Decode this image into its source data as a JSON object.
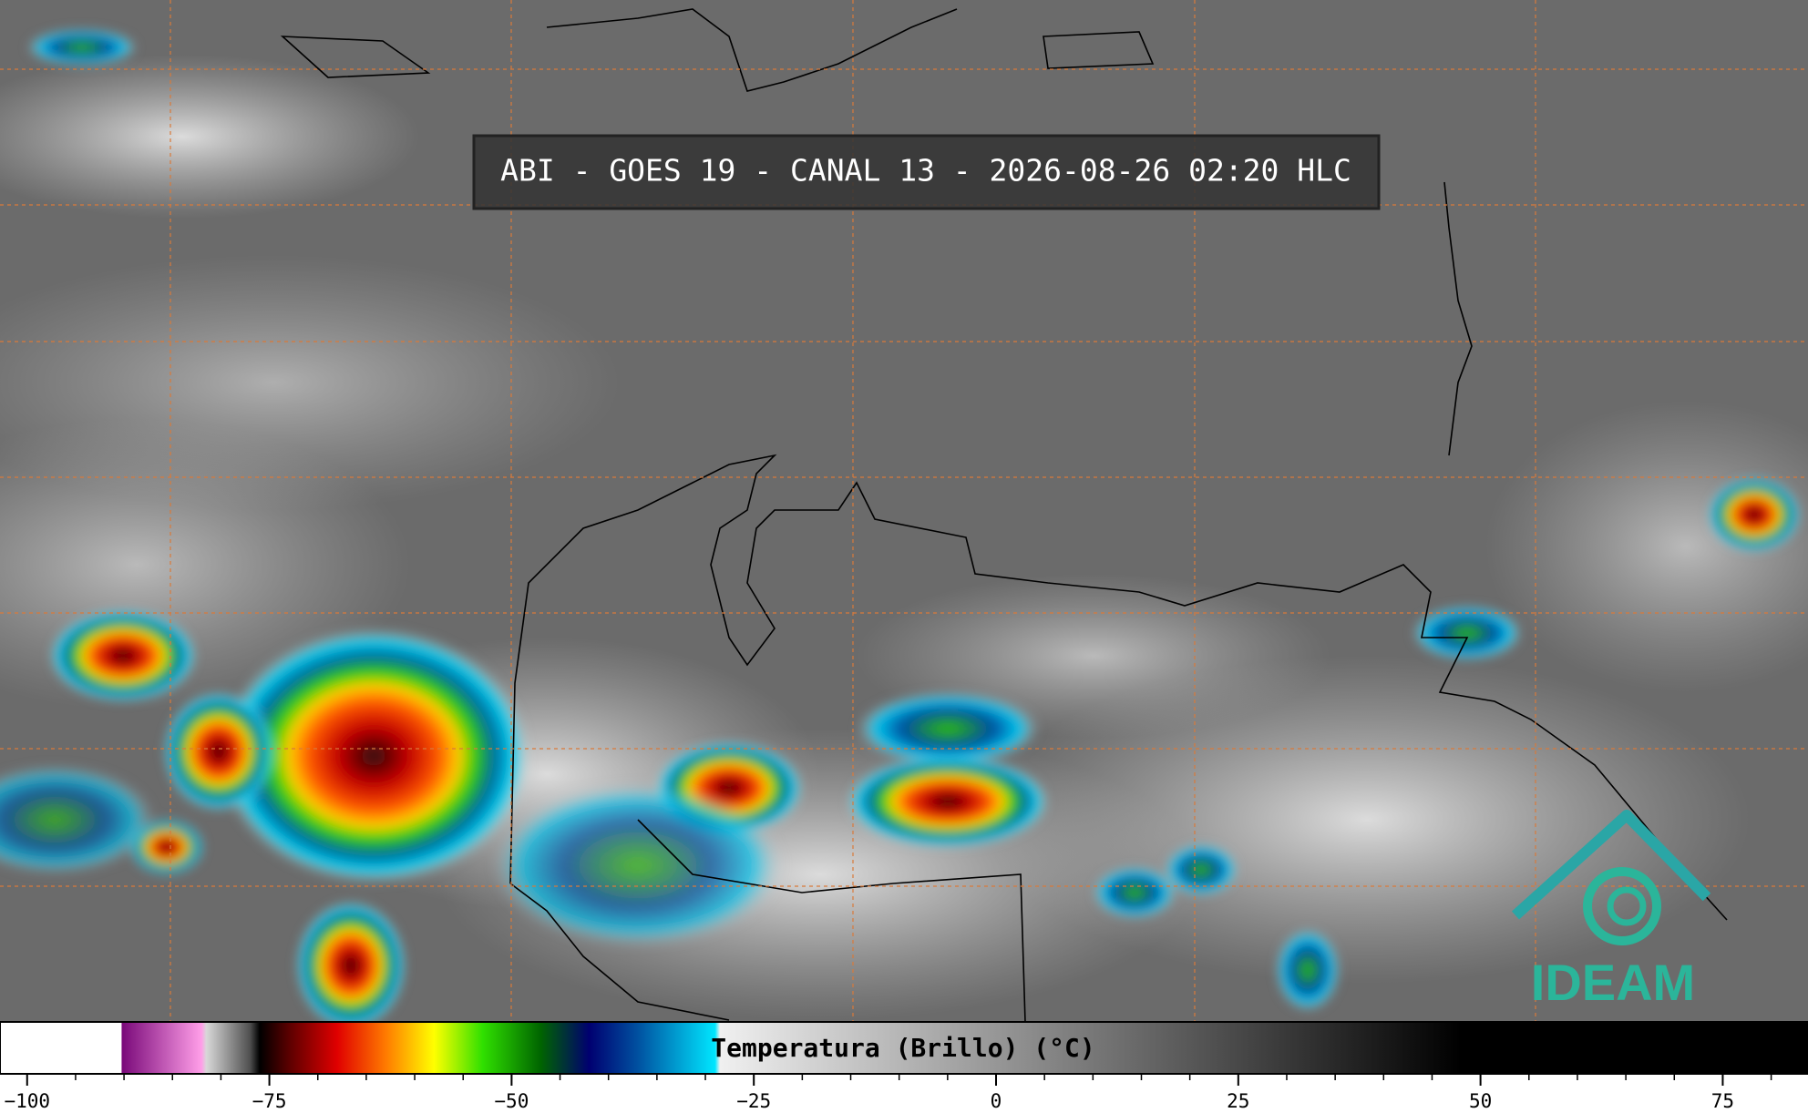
{
  "header": {
    "title": "ABI - GOES 19 - CANAL 13 - 2026-08-26 02:20 HLC"
  },
  "logo": {
    "text": "IDEAM"
  },
  "colorbar": {
    "label": "Temperatura (Brillo) (°C)",
    "lim": [
      -102.8,
      83.8
    ],
    "ticks": [
      {
        "value": -100,
        "label": "−100"
      },
      {
        "value": -75,
        "label": "−75"
      },
      {
        "value": -50,
        "label": "−50"
      },
      {
        "value": -25,
        "label": "−25"
      },
      0,
      25,
      50,
      75
    ],
    "minor_ticks": [
      -100,
      -95,
      -90,
      -85,
      -80,
      -75,
      -70,
      -65,
      -60,
      -55,
      -50,
      -45,
      -40,
      -35,
      -30,
      -25,
      -20,
      -15,
      -10,
      -5,
      0,
      5,
      10,
      15,
      20,
      25,
      30,
      35,
      40,
      45,
      50,
      55,
      60,
      65,
      70,
      75,
      80
    ],
    "stops": [
      {
        "value": -102.8,
        "color": "#ffffff"
      },
      {
        "value": -90.3,
        "color": "#ffffff"
      },
      {
        "value": -90.2,
        "color": "#7a0a7a"
      },
      {
        "value": -82,
        "color": "#ff9ee8"
      },
      {
        "value": -81.5,
        "color": "#d8d8d8"
      },
      {
        "value": -77,
        "color": "#505050"
      },
      {
        "value": -76,
        "color": "#000000"
      },
      {
        "value": -73,
        "color": "#5a0000"
      },
      {
        "value": -68,
        "color": "#e00000"
      },
      {
        "value": -63,
        "color": "#ff7a00"
      },
      {
        "value": -58,
        "color": "#ffff00"
      },
      {
        "value": -53,
        "color": "#30e000"
      },
      {
        "value": -47,
        "color": "#006400"
      },
      {
        "value": -42,
        "color": "#000070"
      },
      {
        "value": -37,
        "color": "#0050a0"
      },
      {
        "value": -29,
        "color": "#00e6ff"
      },
      {
        "value": -28.5,
        "color": "#f0f0f0"
      },
      {
        "value": 48,
        "color": "#000000"
      },
      {
        "value": 83.8,
        "color": "#000000"
      }
    ]
  }
}
